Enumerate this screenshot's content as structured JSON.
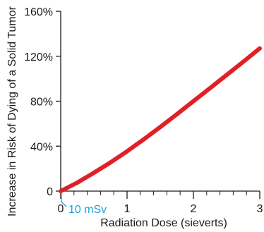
{
  "chart_data": {
    "type": "line",
    "title": "",
    "xlabel": "Radiation Dose (sieverts)",
    "ylabel": "Increase in Risk of Dying of a Solid Tumor",
    "xlim": [
      0,
      3
    ],
    "ylim": [
      0,
      160
    ],
    "x_ticks": [
      0,
      1,
      2,
      3
    ],
    "x_tick_labels": [
      "0",
      "1",
      "2",
      "3"
    ],
    "x_minor_step": 0.2,
    "y_ticks": [
      0,
      40,
      80,
      120,
      160
    ],
    "y_tick_labels": [
      "0",
      "40%",
      "80%",
      "120%",
      "160%"
    ],
    "grid": false,
    "series": [
      {
        "color": "#e02027",
        "x": [
          0,
          0.25,
          0.5,
          0.75,
          1.0,
          1.25,
          1.5,
          1.75,
          2.0,
          2.25,
          2.5,
          2.75,
          3.0
        ],
        "y": [
          0,
          7.5,
          16.3,
          25.5,
          35.4,
          46,
          57,
          68.4,
          80,
          91.6,
          103.3,
          115,
          127
        ]
      }
    ],
    "annotations": [
      {
        "text": "10 mSv",
        "x": 0.01,
        "color": "#1aa3d9"
      }
    ]
  }
}
